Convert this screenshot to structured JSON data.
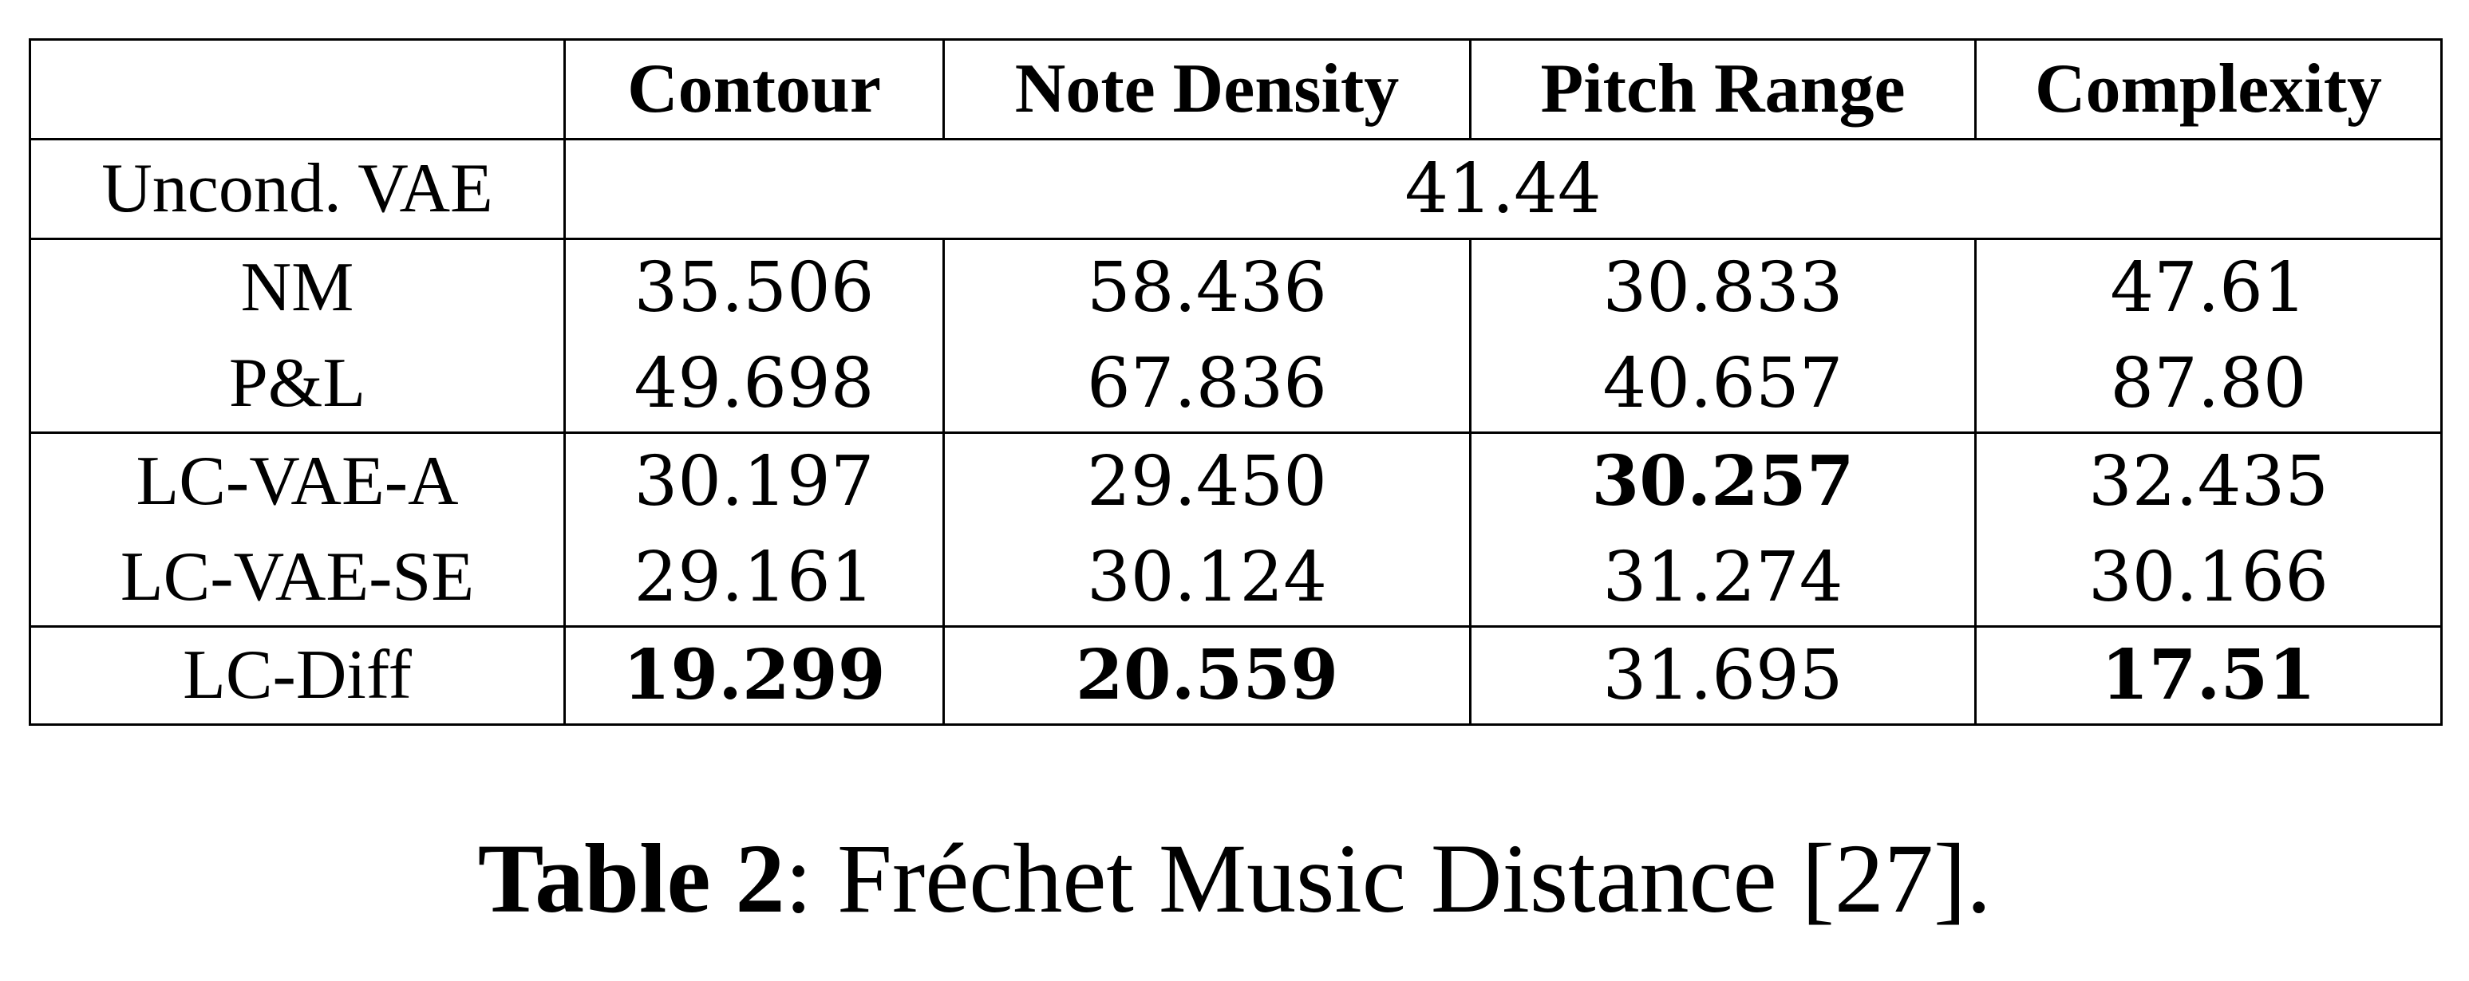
{
  "table": {
    "columns": [
      "",
      "Contour",
      "Note Density",
      "Pitch Range",
      "Complexity"
    ],
    "uncond_row": {
      "label": "Uncond. VAE",
      "value": "41.44"
    },
    "groups": [
      {
        "rows": [
          {
            "label": "NM",
            "values": [
              "35.506",
              "58.436",
              "30.833",
              "47.61"
            ],
            "bold": [
              false,
              false,
              false,
              false
            ]
          },
          {
            "label": "P&L",
            "values": [
              "49.698",
              "67.836",
              "40.657",
              "87.80"
            ],
            "bold": [
              false,
              false,
              false,
              false
            ]
          }
        ]
      },
      {
        "rows": [
          {
            "label": "LC-VAE-A",
            "values": [
              "30.197",
              "29.450",
              "30.257",
              "32.435"
            ],
            "bold": [
              false,
              false,
              true,
              false
            ]
          },
          {
            "label": "LC-VAE-SE",
            "values": [
              "29.161",
              "30.124",
              "31.274",
              "30.166"
            ],
            "bold": [
              false,
              false,
              false,
              false
            ]
          }
        ]
      },
      {
        "rows": [
          {
            "label": "LC-Diff",
            "values": [
              "19.299",
              "20.559",
              "31.695",
              "17.51"
            ],
            "bold": [
              true,
              true,
              false,
              true
            ]
          }
        ]
      }
    ]
  },
  "caption": {
    "label": "Table 2",
    "text": ": Fréchet Music Distance [27]."
  }
}
